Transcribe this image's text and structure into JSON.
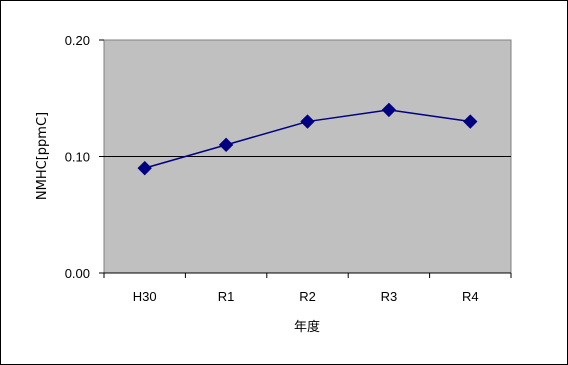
{
  "chart_data": {
    "type": "line",
    "title": "",
    "xlabel": "年度",
    "ylabel": "NMHC[ppmC]",
    "categories": [
      "H30",
      "R1",
      "R2",
      "R3",
      "R4"
    ],
    "series": [
      {
        "values": [
          0.09,
          0.11,
          0.13,
          0.14,
          0.13
        ],
        "color": "#000080",
        "marker": "diamond"
      }
    ],
    "ylim": [
      0.0,
      0.2
    ],
    "yticks": [
      "0.00",
      "0.10",
      "0.20"
    ],
    "reference_line": 0.1,
    "grid": false,
    "legend": "none",
    "plot_background": "#c0c0c0"
  }
}
